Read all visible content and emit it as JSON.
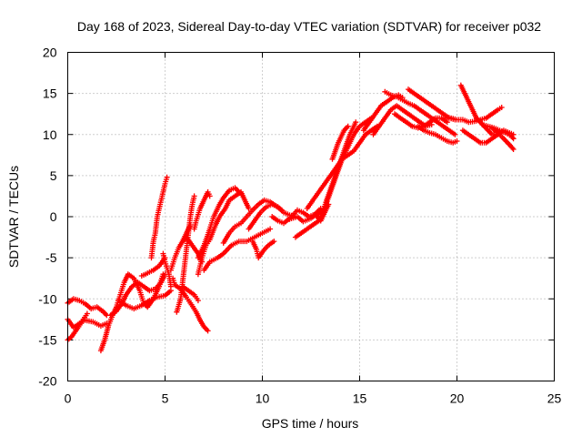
{
  "chart_data": {
    "type": "scatter",
    "title": "Day 168 of 2023, Sidereal Day-to-day VTEC variation (SDTVAR) for receiver p032",
    "xlabel": "GPS time / hours",
    "ylabel": "SDTVAR / TECUs",
    "xlim": [
      0,
      25
    ],
    "ylim": [
      -20,
      20
    ],
    "xticks": [
      "0",
      "5",
      "10",
      "15",
      "20",
      "25"
    ],
    "yticks": [
      "20",
      "15",
      "10",
      "5",
      "0",
      "-5",
      "-10",
      "-15",
      "-20"
    ],
    "grid": true,
    "marker": "plus",
    "color": "#ff0000",
    "tracks": [
      [
        [
          0.0,
          -10.5
        ],
        [
          0.3,
          -10.0
        ],
        [
          0.6,
          -10.2
        ],
        [
          0.9,
          -10.6
        ],
        [
          1.2,
          -11.2
        ],
        [
          1.5,
          -11.0
        ],
        [
          1.8,
          -11.5
        ],
        [
          2.0,
          -12.0
        ]
      ],
      [
        [
          0.0,
          -12.5
        ],
        [
          0.3,
          -13.5
        ],
        [
          0.6,
          -13.0
        ],
        [
          0.9,
          -12.6
        ],
        [
          1.3,
          -12.8
        ],
        [
          1.7,
          -13.3
        ],
        [
          2.0,
          -13.0
        ]
      ],
      [
        [
          0.0,
          -15.0
        ],
        [
          0.2,
          -14.6
        ],
        [
          0.5,
          -13.6
        ],
        [
          0.8,
          -12.5
        ],
        [
          1.0,
          -11.8
        ]
      ],
      [
        [
          1.7,
          -16.3
        ],
        [
          1.9,
          -15.0
        ],
        [
          2.1,
          -13.2
        ],
        [
          2.3,
          -12.0
        ],
        [
          2.5,
          -11.0
        ],
        [
          2.7,
          -9.5
        ],
        [
          2.9,
          -8.0
        ],
        [
          3.1,
          -7.0
        ],
        [
          3.4,
          -7.5
        ],
        [
          3.7,
          -9.0
        ],
        [
          3.9,
          -10.5
        ],
        [
          4.1,
          -11.0
        ],
        [
          4.4,
          -10.0
        ],
        [
          4.7,
          -8.5
        ],
        [
          4.9,
          -7.0
        ]
      ],
      [
        [
          2.2,
          -12.0
        ],
        [
          2.5,
          -11.5
        ],
        [
          2.8,
          -10.5
        ],
        [
          3.0,
          -9.5
        ],
        [
          3.3,
          -8.5
        ],
        [
          3.6,
          -8.0
        ],
        [
          3.9,
          -8.5
        ],
        [
          4.2,
          -9.0
        ],
        [
          4.5,
          -8.8
        ],
        [
          4.8,
          -8.0
        ],
        [
          5.0,
          -7.0
        ]
      ],
      [
        [
          2.6,
          -10.2
        ],
        [
          3.0,
          -10.8
        ],
        [
          3.4,
          -11.2
        ],
        [
          3.8,
          -10.8
        ],
        [
          4.2,
          -10.2
        ],
        [
          4.6,
          -9.8
        ],
        [
          5.0,
          -9.6
        ],
        [
          5.3,
          -9.0
        ]
      ],
      [
        [
          3.8,
          -7.2
        ],
        [
          4.0,
          -7.0
        ],
        [
          4.4,
          -6.5
        ],
        [
          4.7,
          -6.0
        ],
        [
          5.0,
          -5.0
        ]
      ],
      [
        [
          4.3,
          -5.0
        ],
        [
          4.4,
          -3.0
        ],
        [
          4.5,
          -2.0
        ],
        [
          4.6,
          0.0
        ],
        [
          4.7,
          1.0
        ],
        [
          4.8,
          2.0
        ],
        [
          4.9,
          3.0
        ],
        [
          5.0,
          4.0
        ],
        [
          5.1,
          4.8
        ]
      ],
      [
        [
          4.9,
          -4.5
        ],
        [
          5.0,
          -5.5
        ],
        [
          5.2,
          -7.0
        ],
        [
          5.3,
          -8.5
        ]
      ],
      [
        [
          5.4,
          -7.5
        ],
        [
          5.5,
          -8.3
        ],
        [
          5.8,
          -8.8
        ],
        [
          6.1,
          -9.8
        ],
        [
          6.3,
          -10.5
        ],
        [
          6.6,
          -11.6
        ],
        [
          6.8,
          -12.6
        ],
        [
          7.0,
          -13.4
        ],
        [
          7.2,
          -13.9
        ]
      ],
      [
        [
          5.3,
          -6.5
        ],
        [
          5.5,
          -5.0
        ],
        [
          5.7,
          -3.8
        ],
        [
          5.9,
          -3.0
        ],
        [
          6.1,
          -2.5
        ],
        [
          6.4,
          -3.5
        ],
        [
          6.7,
          -4.5
        ],
        [
          6.9,
          -5.5
        ]
      ],
      [
        [
          5.6,
          -11.6
        ],
        [
          5.8,
          -10.0
        ],
        [
          5.9,
          -8.0
        ],
        [
          6.0,
          -6.0
        ],
        [
          6.1,
          -4.0
        ],
        [
          6.2,
          -2.0
        ],
        [
          6.3,
          0.0
        ],
        [
          6.4,
          1.5
        ],
        [
          6.5,
          2.5
        ]
      ],
      [
        [
          5.9,
          -8.5
        ],
        [
          6.2,
          -9.0
        ],
        [
          6.5,
          -9.5
        ],
        [
          6.7,
          -10.2
        ]
      ],
      [
        [
          5.9,
          -3.0
        ],
        [
          6.1,
          -2.0
        ],
        [
          6.3,
          -1.0
        ]
      ],
      [
        [
          6.5,
          -1.5
        ],
        [
          6.6,
          -0.5
        ],
        [
          6.8,
          1.0
        ],
        [
          7.0,
          2.0
        ],
        [
          7.2,
          3.0
        ],
        [
          7.3,
          2.5
        ]
      ],
      [
        [
          6.7,
          -7.0
        ],
        [
          6.9,
          -5.0
        ],
        [
          7.1,
          -3.5
        ],
        [
          7.3,
          -2.8
        ],
        [
          7.6,
          -1.0
        ],
        [
          7.8,
          0.0
        ],
        [
          8.1,
          1.0
        ],
        [
          8.3,
          2.0
        ],
        [
          8.6,
          2.5
        ],
        [
          8.9,
          3.0
        ],
        [
          9.1,
          2.0
        ],
        [
          9.3,
          1.0
        ]
      ],
      [
        [
          7.0,
          -6.5
        ],
        [
          7.3,
          -5.5
        ],
        [
          7.7,
          -5.0
        ],
        [
          8.0,
          -4.5
        ],
        [
          8.4,
          -3.5
        ],
        [
          8.8,
          -3.0
        ],
        [
          9.2,
          -3.0
        ],
        [
          9.6,
          -2.5
        ],
        [
          10.0,
          -2.0
        ],
        [
          10.4,
          -1.5
        ]
      ],
      [
        [
          6.7,
          -5.0
        ],
        [
          7.0,
          -3.5
        ],
        [
          7.3,
          -1.5
        ],
        [
          7.5,
          0.0
        ],
        [
          7.8,
          1.5
        ],
        [
          8.0,
          2.3
        ],
        [
          8.3,
          3.2
        ],
        [
          8.6,
          3.5
        ],
        [
          8.8,
          3.0
        ]
      ],
      [
        [
          8.0,
          -3.2
        ],
        [
          8.3,
          -2.0
        ],
        [
          8.6,
          -1.2
        ],
        [
          8.9,
          -0.8
        ],
        [
          9.2,
          0.0
        ],
        [
          9.5,
          0.8
        ],
        [
          9.8,
          1.5
        ],
        [
          10.1,
          2.0
        ],
        [
          10.4,
          1.8
        ],
        [
          10.7,
          1.3
        ],
        [
          11.0,
          0.8
        ]
      ],
      [
        [
          9.3,
          -1.5
        ],
        [
          9.6,
          -0.5
        ],
        [
          9.9,
          0.5
        ],
        [
          10.2,
          1.2
        ],
        [
          10.5,
          1.5
        ],
        [
          10.8,
          1.2
        ],
        [
          11.1,
          0.5
        ],
        [
          11.4,
          0.2
        ],
        [
          11.7,
          0.0
        ]
      ],
      [
        [
          9.5,
          -3.0
        ],
        [
          9.7,
          -4.0
        ],
        [
          9.8,
          -5.0
        ],
        [
          10.1,
          -4.0
        ],
        [
          10.3,
          -3.5
        ],
        [
          10.6,
          -3.0
        ]
      ],
      [
        [
          10.5,
          0.0
        ],
        [
          10.8,
          -0.5
        ],
        [
          11.1,
          -0.8
        ],
        [
          11.5,
          0.0
        ],
        [
          11.8,
          0.8
        ],
        [
          12.1,
          0.5
        ],
        [
          12.4,
          0.0
        ],
        [
          12.7,
          0.3
        ],
        [
          13.0,
          1.0
        ]
      ],
      [
        [
          11.4,
          -0.3
        ],
        [
          11.8,
          0.0
        ],
        [
          12.1,
          -0.6
        ],
        [
          12.5,
          -0.2
        ],
        [
          12.9,
          0.5
        ],
        [
          13.2,
          1.0
        ],
        [
          13.5,
          3.0
        ],
        [
          13.8,
          5.0
        ],
        [
          14.1,
          7.0
        ],
        [
          14.4,
          8.5
        ],
        [
          14.7,
          10.0
        ],
        [
          15.0,
          11.0
        ],
        [
          15.3,
          11.5
        ],
        [
          15.6,
          12.0
        ]
      ],
      [
        [
          11.7,
          -2.5
        ],
        [
          12.0,
          -2.0
        ],
        [
          12.3,
          -1.5
        ],
        [
          12.6,
          -1.0
        ],
        [
          12.9,
          -0.5
        ],
        [
          13.1,
          0.5
        ],
        [
          13.3,
          2.0
        ],
        [
          13.6,
          4.0
        ],
        [
          13.9,
          6.0
        ],
        [
          14.2,
          8.0
        ],
        [
          14.5,
          10.0
        ],
        [
          14.8,
          11.5
        ]
      ],
      [
        [
          12.3,
          1.0
        ],
        [
          12.6,
          2.0
        ],
        [
          12.9,
          3.0
        ],
        [
          13.2,
          4.0
        ],
        [
          13.5,
          5.0
        ],
        [
          13.8,
          6.0
        ],
        [
          14.1,
          7.0
        ],
        [
          14.4,
          7.5
        ],
        [
          14.7,
          8.0
        ],
        [
          15.0,
          9.0
        ],
        [
          15.3,
          10.0
        ],
        [
          15.6,
          10.5
        ],
        [
          15.9,
          11.0
        ]
      ],
      [
        [
          13.6,
          7.0
        ],
        [
          13.9,
          9.0
        ],
        [
          14.2,
          10.5
        ],
        [
          14.4,
          11.0
        ]
      ],
      [
        [
          15.2,
          10.5
        ],
        [
          15.5,
          11.5
        ],
        [
          15.8,
          12.5
        ],
        [
          16.1,
          13.5
        ],
        [
          16.4,
          14.0
        ],
        [
          16.7,
          14.5
        ],
        [
          17.0,
          14.8
        ],
        [
          17.2,
          14.5
        ]
      ],
      [
        [
          15.7,
          10.0
        ],
        [
          16.0,
          11.0
        ],
        [
          16.3,
          12.0
        ],
        [
          16.6,
          13.0
        ],
        [
          16.9,
          13.5
        ],
        [
          17.2,
          13.0
        ],
        [
          17.5,
          12.5
        ],
        [
          17.8,
          12.0
        ],
        [
          18.1,
          11.5
        ],
        [
          18.4,
          11.0
        ],
        [
          18.7,
          11.2
        ]
      ],
      [
        [
          16.3,
          15.2
        ],
        [
          16.6,
          14.8
        ],
        [
          16.9,
          14.6
        ],
        [
          17.2,
          14.2
        ],
        [
          17.5,
          13.8
        ],
        [
          17.8,
          13.5
        ],
        [
          18.1,
          13.0
        ],
        [
          18.4,
          12.5
        ],
        [
          18.7,
          12.0
        ],
        [
          19.0,
          11.5
        ],
        [
          19.3,
          11.0
        ],
        [
          19.6,
          10.5
        ],
        [
          19.9,
          10.0
        ]
      ],
      [
        [
          17.5,
          15.5
        ],
        [
          17.8,
          15.0
        ],
        [
          18.1,
          14.5
        ],
        [
          18.4,
          14.0
        ],
        [
          18.7,
          13.5
        ],
        [
          19.0,
          13.0
        ],
        [
          19.3,
          12.5
        ],
        [
          19.6,
          12.0
        ],
        [
          19.9,
          11.8
        ]
      ],
      [
        [
          16.8,
          12.5
        ],
        [
          17.1,
          12.0
        ],
        [
          17.4,
          11.5
        ],
        [
          17.7,
          11.0
        ],
        [
          18.0,
          10.8
        ],
        [
          18.3,
          11.0
        ],
        [
          18.6,
          11.5
        ],
        [
          18.9,
          12.0
        ],
        [
          19.2,
          12.0
        ],
        [
          19.5,
          11.5
        ]
      ],
      [
        [
          18.0,
          11.0
        ],
        [
          18.3,
          10.5
        ],
        [
          18.6,
          10.2
        ],
        [
          18.9,
          10.0
        ],
        [
          19.2,
          9.6
        ],
        [
          19.5,
          9.2
        ],
        [
          19.8,
          9.0
        ],
        [
          20.0,
          9.2
        ]
      ],
      [
        [
          19.4,
          12.2
        ],
        [
          19.7,
          12.0
        ],
        [
          20.0,
          11.8
        ],
        [
          20.3,
          11.8
        ],
        [
          20.6,
          11.5
        ],
        [
          20.9,
          11.6
        ],
        [
          21.2,
          11.8
        ],
        [
          21.5,
          12.0
        ],
        [
          21.8,
          12.5
        ],
        [
          22.1,
          13.0
        ],
        [
          22.3,
          13.3
        ]
      ],
      [
        [
          20.2,
          16.0
        ],
        [
          20.4,
          15.0
        ],
        [
          20.6,
          14.0
        ],
        [
          20.8,
          13.0
        ],
        [
          21.0,
          12.0
        ],
        [
          21.2,
          11.5
        ],
        [
          21.4,
          11.0
        ],
        [
          21.6,
          10.5
        ],
        [
          21.8,
          10.0
        ],
        [
          22.0,
          10.0
        ],
        [
          22.2,
          10.3
        ]
      ],
      [
        [
          20.3,
          10.5
        ],
        [
          20.6,
          10.0
        ],
        [
          20.9,
          9.5
        ],
        [
          21.2,
          9.0
        ],
        [
          21.5,
          9.0
        ],
        [
          21.8,
          9.5
        ],
        [
          22.1,
          10.0
        ],
        [
          22.4,
          10.5
        ],
        [
          22.7,
          10.2
        ],
        [
          22.9,
          10.0
        ]
      ],
      [
        [
          21.3,
          11.2
        ],
        [
          21.6,
          11.0
        ],
        [
          21.9,
          10.8
        ],
        [
          22.2,
          10.5
        ],
        [
          22.5,
          10.2
        ],
        [
          22.8,
          9.8
        ],
        [
          22.9,
          9.5
        ]
      ],
      [
        [
          21.8,
          10.8
        ],
        [
          22.1,
          10.2
        ],
        [
          22.4,
          9.5
        ],
        [
          22.6,
          9.0
        ],
        [
          22.8,
          8.5
        ],
        [
          22.9,
          8.2
        ]
      ],
      [
        [
          12.8,
          0.0
        ],
        [
          13.0,
          -0.5
        ],
        [
          13.2,
          0.5
        ],
        [
          13.4,
          1.5
        ]
      ]
    ]
  }
}
